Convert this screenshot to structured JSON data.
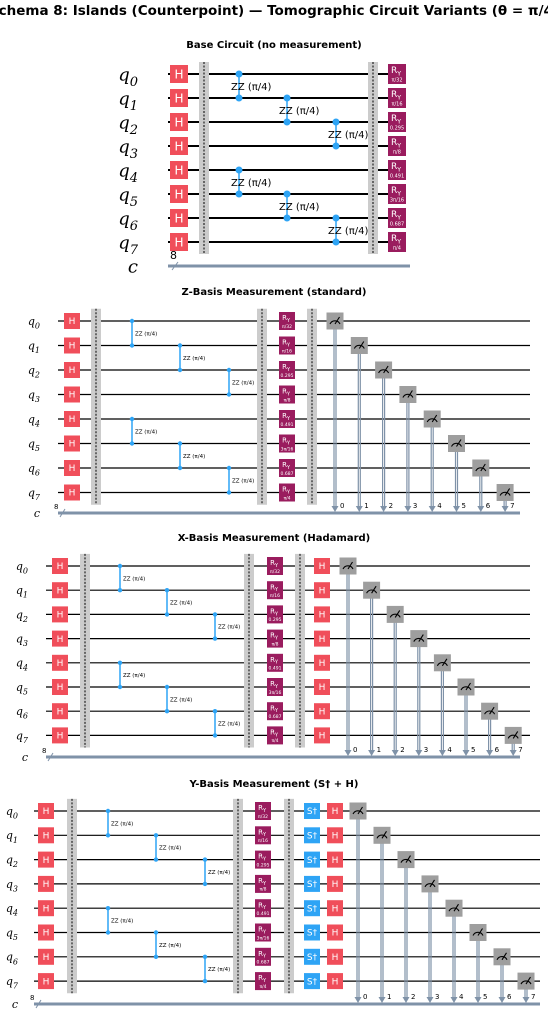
{
  "title": "Schema 8: Islands (Counterpoint) — Tomographic Circuit Variants (θ = π/4)",
  "qubits": [
    "q",
    "q",
    "q",
    "q",
    "q",
    "q",
    "q",
    "q"
  ],
  "qubit_indices": [
    "0",
    "1",
    "2",
    "3",
    "4",
    "5",
    "6",
    "7"
  ],
  "classical_label": "c",
  "classical_count": "8",
  "gates": {
    "h": "H",
    "s_dagger": "S†",
    "ry": "R",
    "ry_sub": "Y",
    "zz": "ZZ (π/4)",
    "ry_params": [
      "π/32",
      "π/16",
      "0.295",
      "π/8",
      "0.491",
      "3π/16",
      "0.687",
      "π/4"
    ]
  },
  "zz_pairs": [
    [
      0,
      1
    ],
    [
      1,
      2
    ],
    [
      2,
      3
    ],
    [
      4,
      5
    ],
    [
      5,
      6
    ],
    [
      6,
      7
    ]
  ],
  "measure_indices": [
    "0",
    "1",
    "2",
    "3",
    "4",
    "5",
    "6",
    "7"
  ],
  "colors": {
    "h": "#f04e5a",
    "ry": "#9a1c5e",
    "zz": "#2ea4f5",
    "s_dagger": "#2ea4f5",
    "measure": "#9e9e9e",
    "barrier": "#cccccc",
    "wire": "#000000",
    "classical": "#7f92a8"
  },
  "panels": [
    {
      "title": "Base Circuit (no measurement)",
      "basis": "none"
    },
    {
      "title": "Z-Basis Measurement (standard)",
      "basis": "z"
    },
    {
      "title": "X-Basis Measurement (Hadamard)",
      "basis": "x"
    },
    {
      "title": "Y-Basis Measurement (S† + H)",
      "basis": "y"
    }
  ]
}
